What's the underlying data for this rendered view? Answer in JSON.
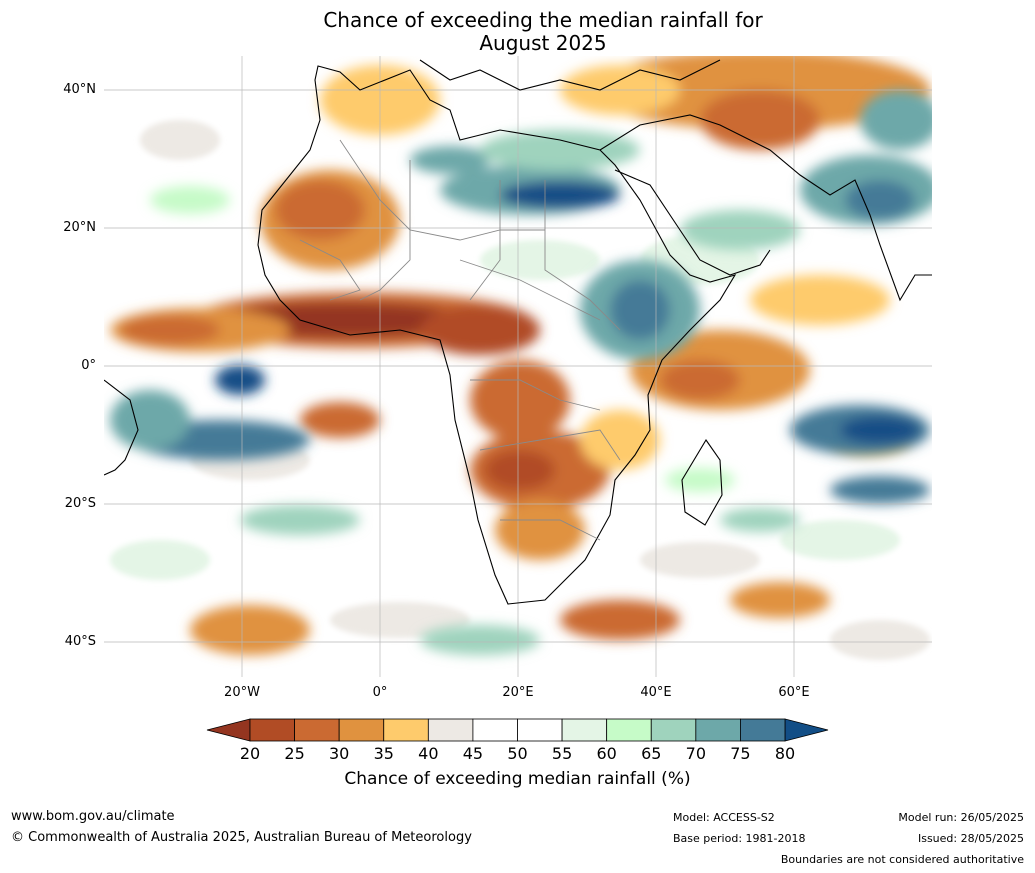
{
  "title_line1": "Chance of exceeding the median rainfall for",
  "title_line2": "August 2025",
  "lat_labels": [
    "40°N",
    "20°N",
    "0°",
    "20°S",
    "40°S"
  ],
  "lon_labels": [
    "20°W",
    "0°",
    "20°E",
    "40°E",
    "60°E"
  ],
  "colorbar": {
    "ticks": [
      "20",
      "25",
      "30",
      "35",
      "40",
      "45",
      "50",
      "55",
      "60",
      "65",
      "70",
      "75",
      "80"
    ],
    "colors": [
      "#943520",
      "#b14c25",
      "#cb6a32",
      "#e0923f",
      "#fecb6c",
      "#ede9e4",
      "#ffffff",
      "#ffffff",
      "#e4f5e6",
      "#c6fbc8",
      "#9fd3bd",
      "#6da8a9",
      "#447a97",
      "#124e86"
    ],
    "label": "Chance of exceeding median rainfall (%)"
  },
  "footer": {
    "url": "www.bom.gov.au/climate",
    "copyright": "© Commonwealth of Australia 2025, Australian Bureau of Meteorology",
    "model": "Model: ACCESS-S2",
    "base_period": "Base period: 1981-2018",
    "model_run": "Model run: 26/05/2025",
    "issued": "Issued: 28/05/2025",
    "disclaimer": "Boundaries are not considered authoritative"
  }
}
